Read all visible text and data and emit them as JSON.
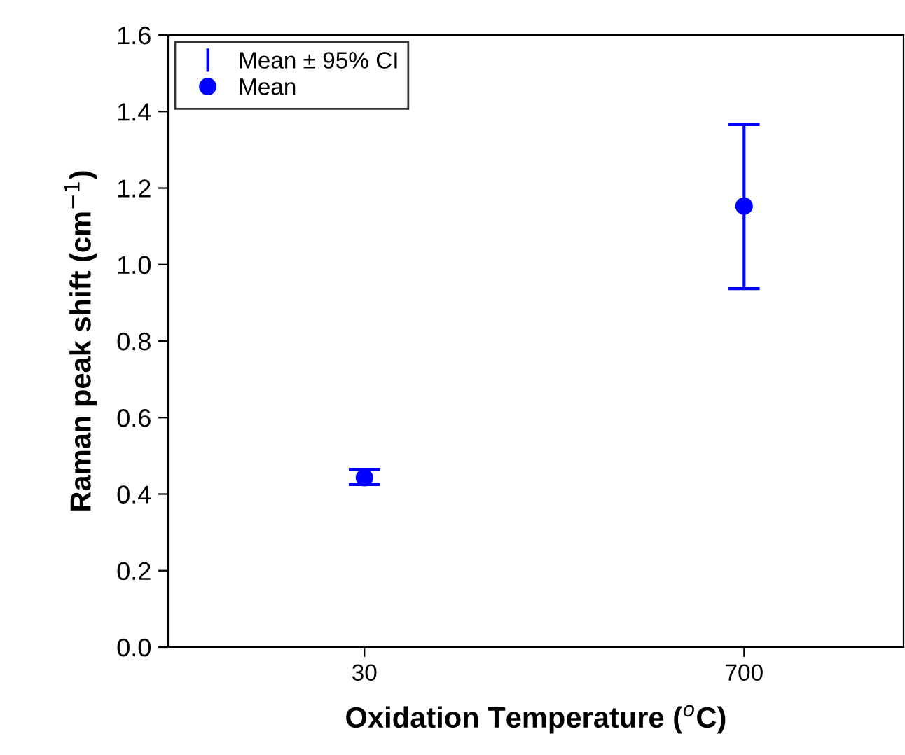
{
  "chart_data": {
    "type": "scatter",
    "xlabel": "Oxidation Temperature ($^{o}$C)",
    "ylabel": "Raman peak shift (cm$^{−1}$)",
    "categories": [
      "30",
      "700"
    ],
    "series": [
      {
        "name": "Mean",
        "marker": "circle",
        "color": "#0000ff",
        "values": [
          0.443,
          1.153
        ],
        "errors": [
          [
            0.425,
            0.465
          ],
          [
            0.937,
            1.366
          ]
        ]
      }
    ],
    "annotations": [
      "Mean ± 95% CI"
    ],
    "ylim": [
      0,
      1.6
    ],
    "yticks": [
      {
        "value": 0,
        "label": "0.0"
      },
      0.2,
      0.4,
      0.6,
      0.8,
      {
        "value": 1,
        "label": "1.0"
      },
      1.2,
      1.4,
      1.6
    ],
    "grid": false,
    "legend": "top left"
  }
}
